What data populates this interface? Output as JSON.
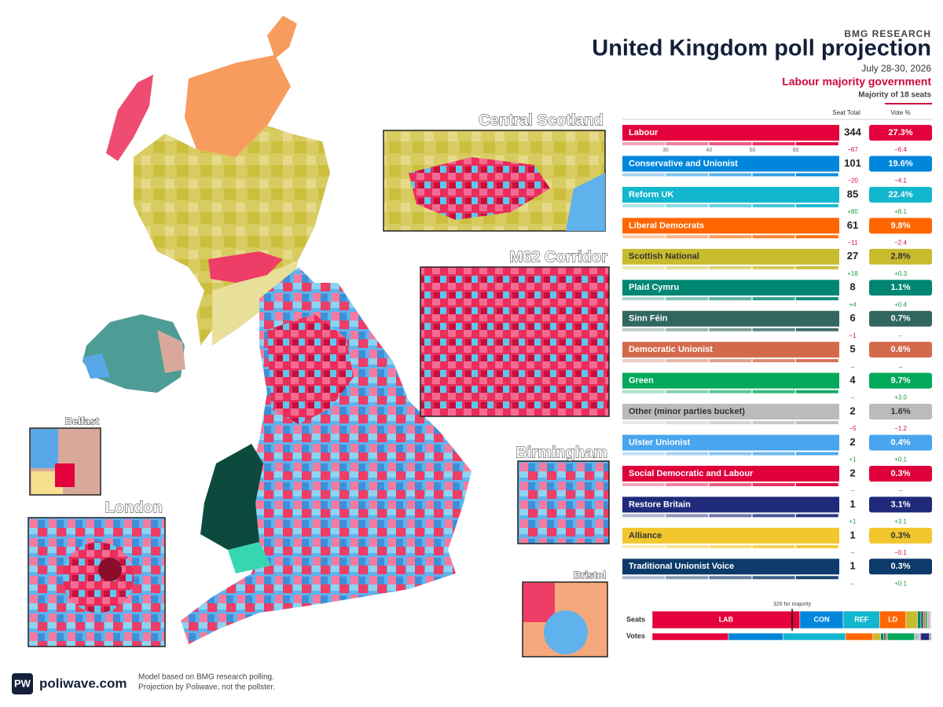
{
  "header": {
    "source": "BMG RESEARCH",
    "title": "United Kingdom poll projection",
    "date": "July 28-30, 2026",
    "outcome": "Labour majority government",
    "majority": "Majority of 18 seats"
  },
  "columns": {
    "seats": "Seat Total",
    "vote": "Vote %"
  },
  "insets": [
    "Central Scotland",
    "M62 Corridor",
    "Belfast",
    "Birmingham",
    "London",
    "Bristol"
  ],
  "parties": [
    {
      "name": "Labour",
      "abbr": "LAB",
      "color": "#e4003b",
      "seats": 344,
      "seat_change": "−67",
      "vote": 27.3,
      "vote_label": "27.3%",
      "vote_change": "−6.4",
      "scale_ticks": [
        30,
        40,
        50,
        60
      ]
    },
    {
      "name": "Conservative and Unionist",
      "abbr": "CON",
      "color": "#0087dc",
      "seats": 101,
      "seat_change": "−20",
      "vote": 19.6,
      "vote_label": "19.6%",
      "vote_change": "−4.1"
    },
    {
      "name": "Reform UK",
      "abbr": "REF",
      "color": "#12b6cf",
      "seats": 85,
      "seat_change": "+80",
      "vote": 22.4,
      "vote_label": "22.4%",
      "vote_change": "+8.1"
    },
    {
      "name": "Liberal Democrats",
      "abbr": "LD",
      "color": "#ff6600",
      "seats": 61,
      "seat_change": "−11",
      "vote": 9.8,
      "vote_label": "9.8%",
      "vote_change": "−2.4"
    },
    {
      "name": "Scottish National",
      "color": "#c8bb2e",
      "seats": 27,
      "seat_change": "+18",
      "vote": 2.8,
      "vote_label": "2.8%",
      "vote_change": "+0.3"
    },
    {
      "name": "Plaid Cymru",
      "color": "#008672",
      "seats": 8,
      "seat_change": "+4",
      "vote": 1.1,
      "vote_label": "1.1%",
      "vote_change": "+0.4"
    },
    {
      "name": "Sinn Féin",
      "color": "#326760",
      "seats": 6,
      "seat_change": "−1",
      "vote": 0.7,
      "vote_label": "0.7%",
      "vote_change": "–"
    },
    {
      "name": "Democratic Unionist",
      "color": "#d46a4c",
      "seats": 5,
      "seat_change": "–",
      "vote": 0.6,
      "vote_label": "0.6%",
      "vote_change": "–"
    },
    {
      "name": "Green",
      "color": "#02a95b",
      "seats": 4,
      "seat_change": "–",
      "vote": 9.7,
      "vote_label": "9.7%",
      "vote_change": "+3.0"
    },
    {
      "name": "Other (minor parties bucket)",
      "color": "#bbbbbb",
      "seats": 2,
      "seat_change": "−5",
      "vote": 1.6,
      "vote_label": "1.6%",
      "vote_change": "−1.2"
    },
    {
      "name": "Ulster Unionist",
      "color": "#48a5ee",
      "seats": 2,
      "seat_change": "+1",
      "vote": 0.4,
      "vote_label": "0.4%",
      "vote_change": "+0.1"
    },
    {
      "name": "Social Democratic and Labour",
      "color": "#e0003b",
      "seats": 2,
      "seat_change": "–",
      "vote": 0.3,
      "vote_label": "0.3%",
      "vote_change": "–"
    },
    {
      "name": "Restore Britain",
      "color": "#1f2a7a",
      "seats": 1,
      "seat_change": "+1",
      "vote": 3.1,
      "vote_label": "3.1%",
      "vote_change": "+3.1"
    },
    {
      "name": "Alliance",
      "color": "#f2c72e",
      "seats": 1,
      "seat_change": "–",
      "vote": 0.3,
      "vote_label": "0.3%",
      "vote_change": "−0.1"
    },
    {
      "name": "Traditional Unionist Voice",
      "color": "#0c3a6a",
      "seats": 1,
      "seat_change": "–",
      "vote": 0.3,
      "vote_label": "0.3%",
      "vote_change": "+0.1"
    }
  ],
  "summary": {
    "seats_label": "Seats",
    "votes_label": "Votes",
    "majority_line": {
      "value": 326,
      "label": "326 for majority"
    }
  },
  "footer": {
    "logo": "PW",
    "site": "poliwave.com",
    "note1": "Model based on BMG research polling.",
    "note2": "Projection by Poliwave, not the pollster."
  }
}
